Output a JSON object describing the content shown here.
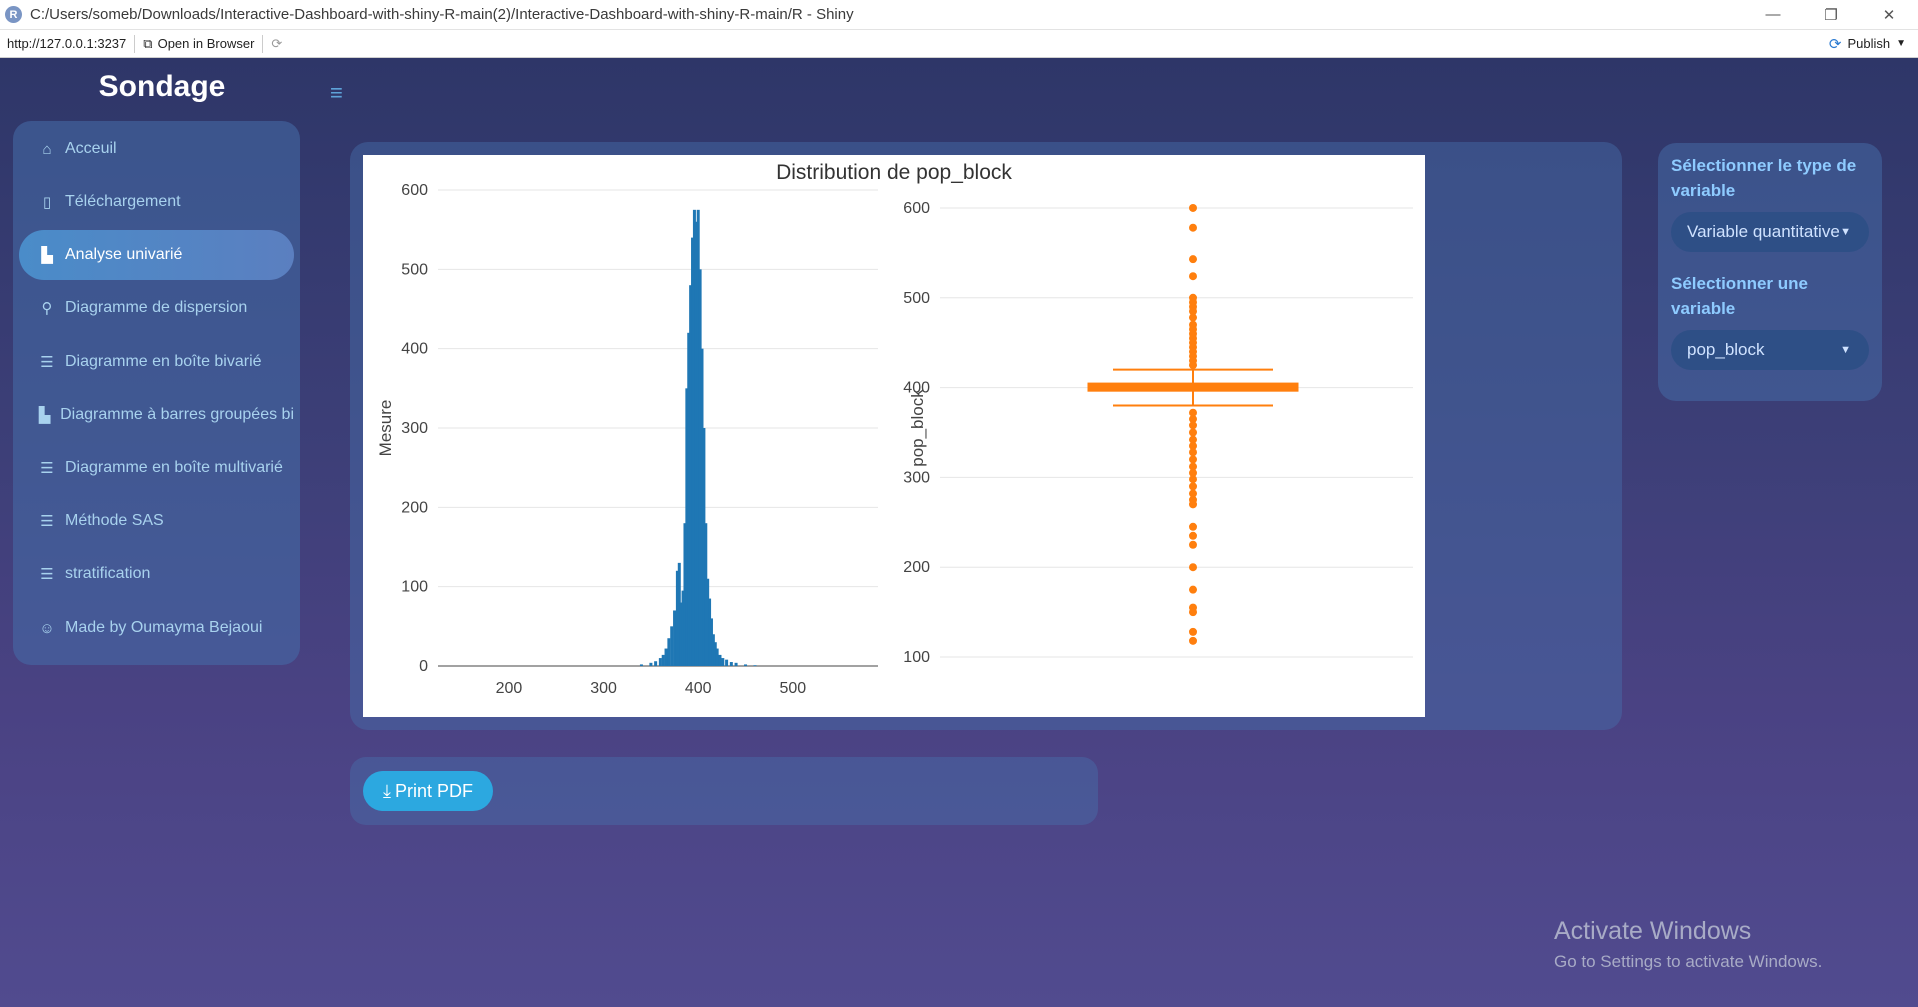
{
  "window": {
    "title": "C:/Users/someb/Downloads/Interactive-Dashboard-with-shiny-R-main(2)/Interactive-Dashboard-with-shiny-R-main/R - Shiny",
    "logo_letter": "R",
    "minimize": "—",
    "maximize": "❐",
    "close": "✕"
  },
  "addressbar": {
    "url": "http://127.0.0.1:3237",
    "open_in_browser": "Open in Browser",
    "publish": "Publish"
  },
  "app": {
    "brand": "Sondage",
    "menu_toggle": "≡"
  },
  "sidebar": {
    "items": [
      {
        "label": "Acceuil",
        "icon": "⌂",
        "icon_name": "home-icon"
      },
      {
        "label": "Téléchargement",
        "icon": "▯",
        "icon_name": "file-icon"
      },
      {
        "label": "Analyse univarié",
        "icon": "▙",
        "icon_name": "bar-chart-icon"
      },
      {
        "label": "Diagramme de dispersion",
        "icon": "⚲",
        "icon_name": "scatter-icon"
      },
      {
        "label": "Diagramme en boîte bivarié",
        "icon": "☰",
        "icon_name": "sliders-icon"
      },
      {
        "label": "Diagramme à barres groupées bi",
        "icon": "▙",
        "icon_name": "bar-chart-icon"
      },
      {
        "label": "Diagramme en boîte multivarié",
        "icon": "☰",
        "icon_name": "sliders-icon"
      },
      {
        "label": "Méthode SAS",
        "icon": "☰",
        "icon_name": "sliders-icon"
      },
      {
        "label": "stratification",
        "icon": "☰",
        "icon_name": "sliders-icon"
      },
      {
        "label": "Made by Oumayma Bejaoui",
        "icon": "☺",
        "icon_name": "user-circle-icon"
      }
    ],
    "active_index": 2
  },
  "controls": {
    "type_label": "Sélectionner le type de variable",
    "type_value": "Variable quantitative",
    "var_label": "Sélectionner une variable",
    "var_value": "pop_block"
  },
  "print_button": {
    "label": "Print PDF",
    "icon": "⤓"
  },
  "watermark": {
    "line1": "Activate Windows",
    "line2": "Go to Settings to activate Windows."
  },
  "colors": {
    "histogram": "#1f77b4",
    "boxplot": "#ff7f0e",
    "accent": "#2ca8e0"
  },
  "chart_data": [
    {
      "type": "bar",
      "title": "Distribution de pop_block",
      "xlabel": "",
      "ylabel": "Mesure",
      "xlim": [
        125,
        590
      ],
      "ylim": [
        0,
        600
      ],
      "xticks": [
        200,
        300,
        400,
        500
      ],
      "yticks": [
        0,
        100,
        200,
        300,
        400,
        500,
        600
      ],
      "bins_x": [
        340,
        350,
        355,
        360,
        363,
        366,
        369,
        372,
        375,
        378,
        380,
        382,
        384,
        386,
        388,
        390,
        392,
        394,
        396,
        398,
        400,
        402,
        404,
        406,
        408,
        410,
        412,
        414,
        416,
        418,
        420,
        423,
        426,
        430,
        435,
        440,
        450,
        460
      ],
      "bins_y": [
        2,
        4,
        6,
        10,
        14,
        22,
        35,
        50,
        70,
        120,
        130,
        80,
        95,
        180,
        350,
        420,
        480,
        540,
        575,
        560,
        575,
        500,
        400,
        300,
        180,
        110,
        85,
        60,
        40,
        30,
        22,
        14,
        10,
        8,
        5,
        4,
        2,
        1
      ]
    },
    {
      "type": "box",
      "ylabel": "pop_block",
      "ylim": [
        90,
        620
      ],
      "yticks": [
        100,
        200,
        300,
        400,
        500,
        600
      ],
      "q1": 396,
      "median": 400,
      "q3": 405,
      "whisker_low": 380,
      "whisker_high": 420,
      "outliers": [
        600,
        578,
        543,
        524,
        500,
        495,
        490,
        485,
        478,
        470,
        465,
        460,
        455,
        450,
        445,
        440,
        435,
        430,
        425,
        372,
        365,
        358,
        350,
        342,
        335,
        328,
        320,
        312,
        305,
        298,
        290,
        282,
        275,
        270,
        245,
        235,
        225,
        200,
        175,
        155,
        150,
        128,
        118
      ]
    }
  ]
}
